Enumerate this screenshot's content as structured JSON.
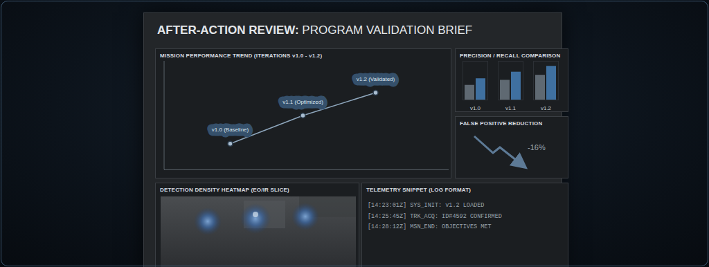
{
  "header": {
    "title_bold": "AFTER-ACTION REVIEW:",
    "title_rest": "PROGRAM VALIDATION BRIEF"
  },
  "chart_data": [
    {
      "type": "line",
      "title": "MISSION PERFORMANCE TREND (ITERATIONS v1.0 - v1.2)",
      "categories": [
        "v1.0 (Baseline)",
        "v1.1 (Optimized)",
        "v1.2 (Validated)"
      ],
      "values": [
        24,
        50,
        71
      ],
      "color": "#8ea6bc",
      "marker": "circle",
      "ylim": [
        0,
        100
      ],
      "yticks": [],
      "tick_labels": false
    },
    {
      "type": "bar",
      "title": "PRECISION / RECALL COMPARISON",
      "categories": [
        "v1.0",
        "v1.1",
        "v1.2"
      ],
      "series": [
        {
          "color": "#5f6972",
          "values": [
            38,
            51,
            64
          ]
        },
        {
          "color": "#3f70a0",
          "values": [
            55,
            72,
            87
          ]
        }
      ],
      "ylim": [
        0,
        100
      ],
      "yticks": [],
      "tick_labels": "x"
    }
  ],
  "false_positive": {
    "title": "FALSE POSITIVE REDUCTION",
    "label": "-16%"
  },
  "heatmap": {
    "title": "DETECTION DENSITY HEATMAP (EO/IR SLICE)"
  },
  "telemetry": {
    "title": "TELEMETRY SNIPPET (LOG FORMAT)",
    "lines": [
      "[14:23:01Z] SYS_INIT: v1.2 LOADED",
      "[14:25:45Z] TRK_ACQ: ID#4592 CONFIRMED",
      "[14:28:12Z] MSN_END: OBJECTIVES MET"
    ]
  }
}
